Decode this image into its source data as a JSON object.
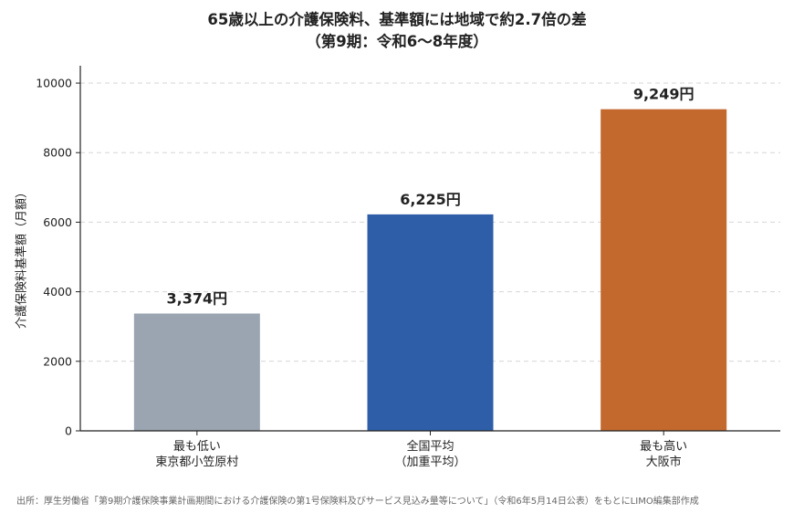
{
  "chart_data": {
    "type": "bar",
    "title": "65歳以上の介護保険料、基準額には地域で約2.7倍の差",
    "subtitle": "（第9期：令和6～8年度）",
    "ylabel": "介護保険料基準額（月額）",
    "xlabel": "",
    "ylim": [
      0,
      10500
    ],
    "yticks": [
      0,
      2000,
      4000,
      6000,
      8000,
      10000
    ],
    "grid": "horizontal-dashed",
    "categories": [
      [
        "最も低い",
        "東京都小笠原村"
      ],
      [
        "全国平均",
        "（加重平均）"
      ],
      [
        "最も高い",
        "大阪市"
      ]
    ],
    "values": [
      3374,
      6225,
      9249
    ],
    "data_labels": [
      "3,374円",
      "6,225円",
      "9,249円"
    ],
    "colors": [
      "#9aa5b1",
      "#2e5ea8",
      "#c4692e"
    ]
  },
  "source": "出所：厚生労働省「第9期介護保険事業計画期間における介護保険の第1号保険料及びサービス見込み量等について」（令和6年5月14日公表）をもとにLIMO編集部作成"
}
